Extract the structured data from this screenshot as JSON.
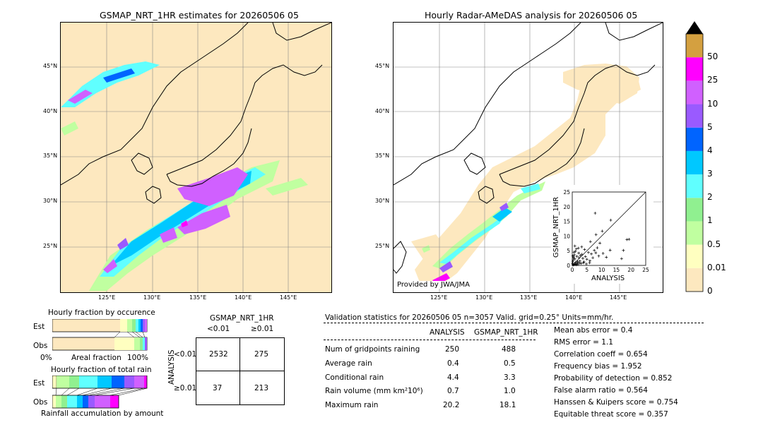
{
  "left_map": {
    "title": "GSMAP_NRT_1HR estimates for 20260506 05",
    "lat_labels": [
      "45°N",
      "40°N",
      "35°N",
      "30°N",
      "25°N"
    ],
    "lon_labels": [
      "125°E",
      "130°E",
      "135°E",
      "140°E",
      "145°E"
    ]
  },
  "right_map": {
    "title": "Hourly Radar-AMeDAS analysis for 20260506 05",
    "lat_labels": [
      "45°N",
      "40°N",
      "35°N",
      "30°N",
      "25°N"
    ],
    "lon_labels": [
      "125°E",
      "130°E",
      "135°E",
      "140°E",
      "145°E"
    ],
    "credit": "Provided by JWA/JMA"
  },
  "colorbar": {
    "levels": [
      "0",
      "0.01",
      "0.5",
      "1",
      "2",
      "3",
      "4",
      "5",
      "10",
      "25",
      "50"
    ],
    "colors": [
      "#fde8bf",
      "#ffffc0",
      "#c0ffa0",
      "#90f090",
      "#60ffff",
      "#00c8ff",
      "#0064ff",
      "#9a5aff",
      "#d060ff",
      "#ff00ff",
      "#d4a040"
    ],
    "extend_color": "#000000"
  },
  "scatter": {
    "xlabel": "ANALYSIS",
    "ylabel": "GSMAP_NRT_1HR",
    "ticks": [
      "0",
      "5",
      "10",
      "15",
      "20",
      "25"
    ]
  },
  "fraction_occurrence": {
    "title": "Hourly fraction by occurence",
    "row_est": "Est",
    "row_obs": "Obs",
    "axis_left": "0%",
    "axis_mid": "Areal fraction",
    "axis_right": "100%"
  },
  "fraction_total": {
    "title": "Hourly fraction of total rain",
    "row_est": "Est",
    "row_obs": "Obs",
    "footer": "Rainfall accumulation by amount"
  },
  "contingency": {
    "title": "GSMAP_NRT_1HR",
    "col1": "<0.01",
    "col2": "≥0.01",
    "row_axis": "ANALYSIS",
    "row1": "<0.01",
    "row2": "≥0.01",
    "cells": [
      "2532",
      "275",
      "37",
      "213"
    ]
  },
  "validation": {
    "header": "Validation statistics for 20260506 05  n=3057 Valid. grid=0.25°  Units=mm/hr.",
    "col_analysis": "ANALYSIS",
    "col_gsmap": "GSMAP_NRT_1HR",
    "rows": [
      {
        "label": "Num of gridpoints raining",
        "a": "250",
        "g": "488"
      },
      {
        "label": "Average rain",
        "a": "0.4",
        "g": "0.5"
      },
      {
        "label": "Conditional rain",
        "a": "4.4",
        "g": "3.3"
      },
      {
        "label": "Rain volume (mm km²10⁶)",
        "a": "0.7",
        "g": "1.0"
      },
      {
        "label": "Maximum rain",
        "a": "20.2",
        "g": "18.1"
      }
    ],
    "scores": [
      "Mean abs error =    0.4",
      "RMS error =    1.1",
      "Correlation coeff =  0.654",
      "Frequency bias =  1.952",
      "Probability of detection =  0.852",
      "False alarm ratio =  0.564",
      "Hanssen & Kuipers score =  0.754",
      "Equitable threat score =  0.357"
    ]
  },
  "chart_data": {
    "type": "scatter",
    "title": "",
    "xlabel": "ANALYSIS",
    "ylabel": "GSMAP_NRT_1HR",
    "xlim": [
      0,
      25
    ],
    "ylim": [
      0,
      25
    ],
    "points": [
      [
        0.2,
        0.1
      ],
      [
        0.4,
        0.3
      ],
      [
        0.6,
        0.2
      ],
      [
        0.8,
        0.5
      ],
      [
        1.0,
        0.4
      ],
      [
        1.2,
        1.1
      ],
      [
        1.5,
        0.6
      ],
      [
        1.8,
        1.4
      ],
      [
        2.0,
        0.9
      ],
      [
        2.3,
        2.6
      ],
      [
        2.6,
        1.5
      ],
      [
        3.0,
        0.7
      ],
      [
        3.3,
        3.8
      ],
      [
        0.3,
        1.8
      ],
      [
        0.5,
        2.9
      ],
      [
        0.7,
        3.6
      ],
      [
        1.1,
        4.8
      ],
      [
        0.9,
        2.2
      ],
      [
        1.6,
        3.1
      ],
      [
        2.2,
        4.2
      ],
      [
        2.8,
        3.4
      ],
      [
        3.6,
        2.4
      ],
      [
        4.0,
        1.2
      ],
      [
        4.5,
        3.0
      ],
      [
        5.0,
        2.1
      ],
      [
        5.5,
        4.4
      ],
      [
        6.0,
        1.6
      ],
      [
        6.5,
        3.9
      ],
      [
        7.0,
        2.6
      ],
      [
        7.5,
        5.1
      ],
      [
        8.0,
        4.3
      ],
      [
        8.5,
        6.0
      ],
      [
        6.2,
        8.1
      ],
      [
        8.1,
        10.5
      ],
      [
        9.4,
        7.6
      ],
      [
        10.2,
        11.7
      ],
      [
        7.8,
        17.8
      ],
      [
        13.1,
        15.4
      ],
      [
        18.6,
        8.8
      ],
      [
        19.3,
        8.9
      ],
      [
        12.9,
        5.2
      ],
      [
        16.8,
        2.3
      ],
      [
        17.4,
        5.1
      ],
      [
        9.0,
        3.2
      ],
      [
        10.5,
        4.1
      ],
      [
        11.6,
        2.8
      ],
      [
        0.1,
        0.6
      ],
      [
        0.2,
        1.2
      ],
      [
        0.4,
        2.5
      ],
      [
        1.3,
        0.2
      ],
      [
        1.9,
        0.3
      ],
      [
        2.5,
        0.8
      ],
      [
        3.8,
        0.9
      ],
      [
        4.8,
        0.5
      ],
      [
        5.9,
        0.9
      ],
      [
        0.6,
        4.5
      ],
      [
        1.4,
        5.6
      ],
      [
        2.1,
        5.9
      ],
      [
        3.2,
        6.3
      ],
      [
        0.2,
        3.2
      ],
      [
        0.9,
        6.6
      ],
      [
        4.2,
        5.4
      ]
    ]
  }
}
